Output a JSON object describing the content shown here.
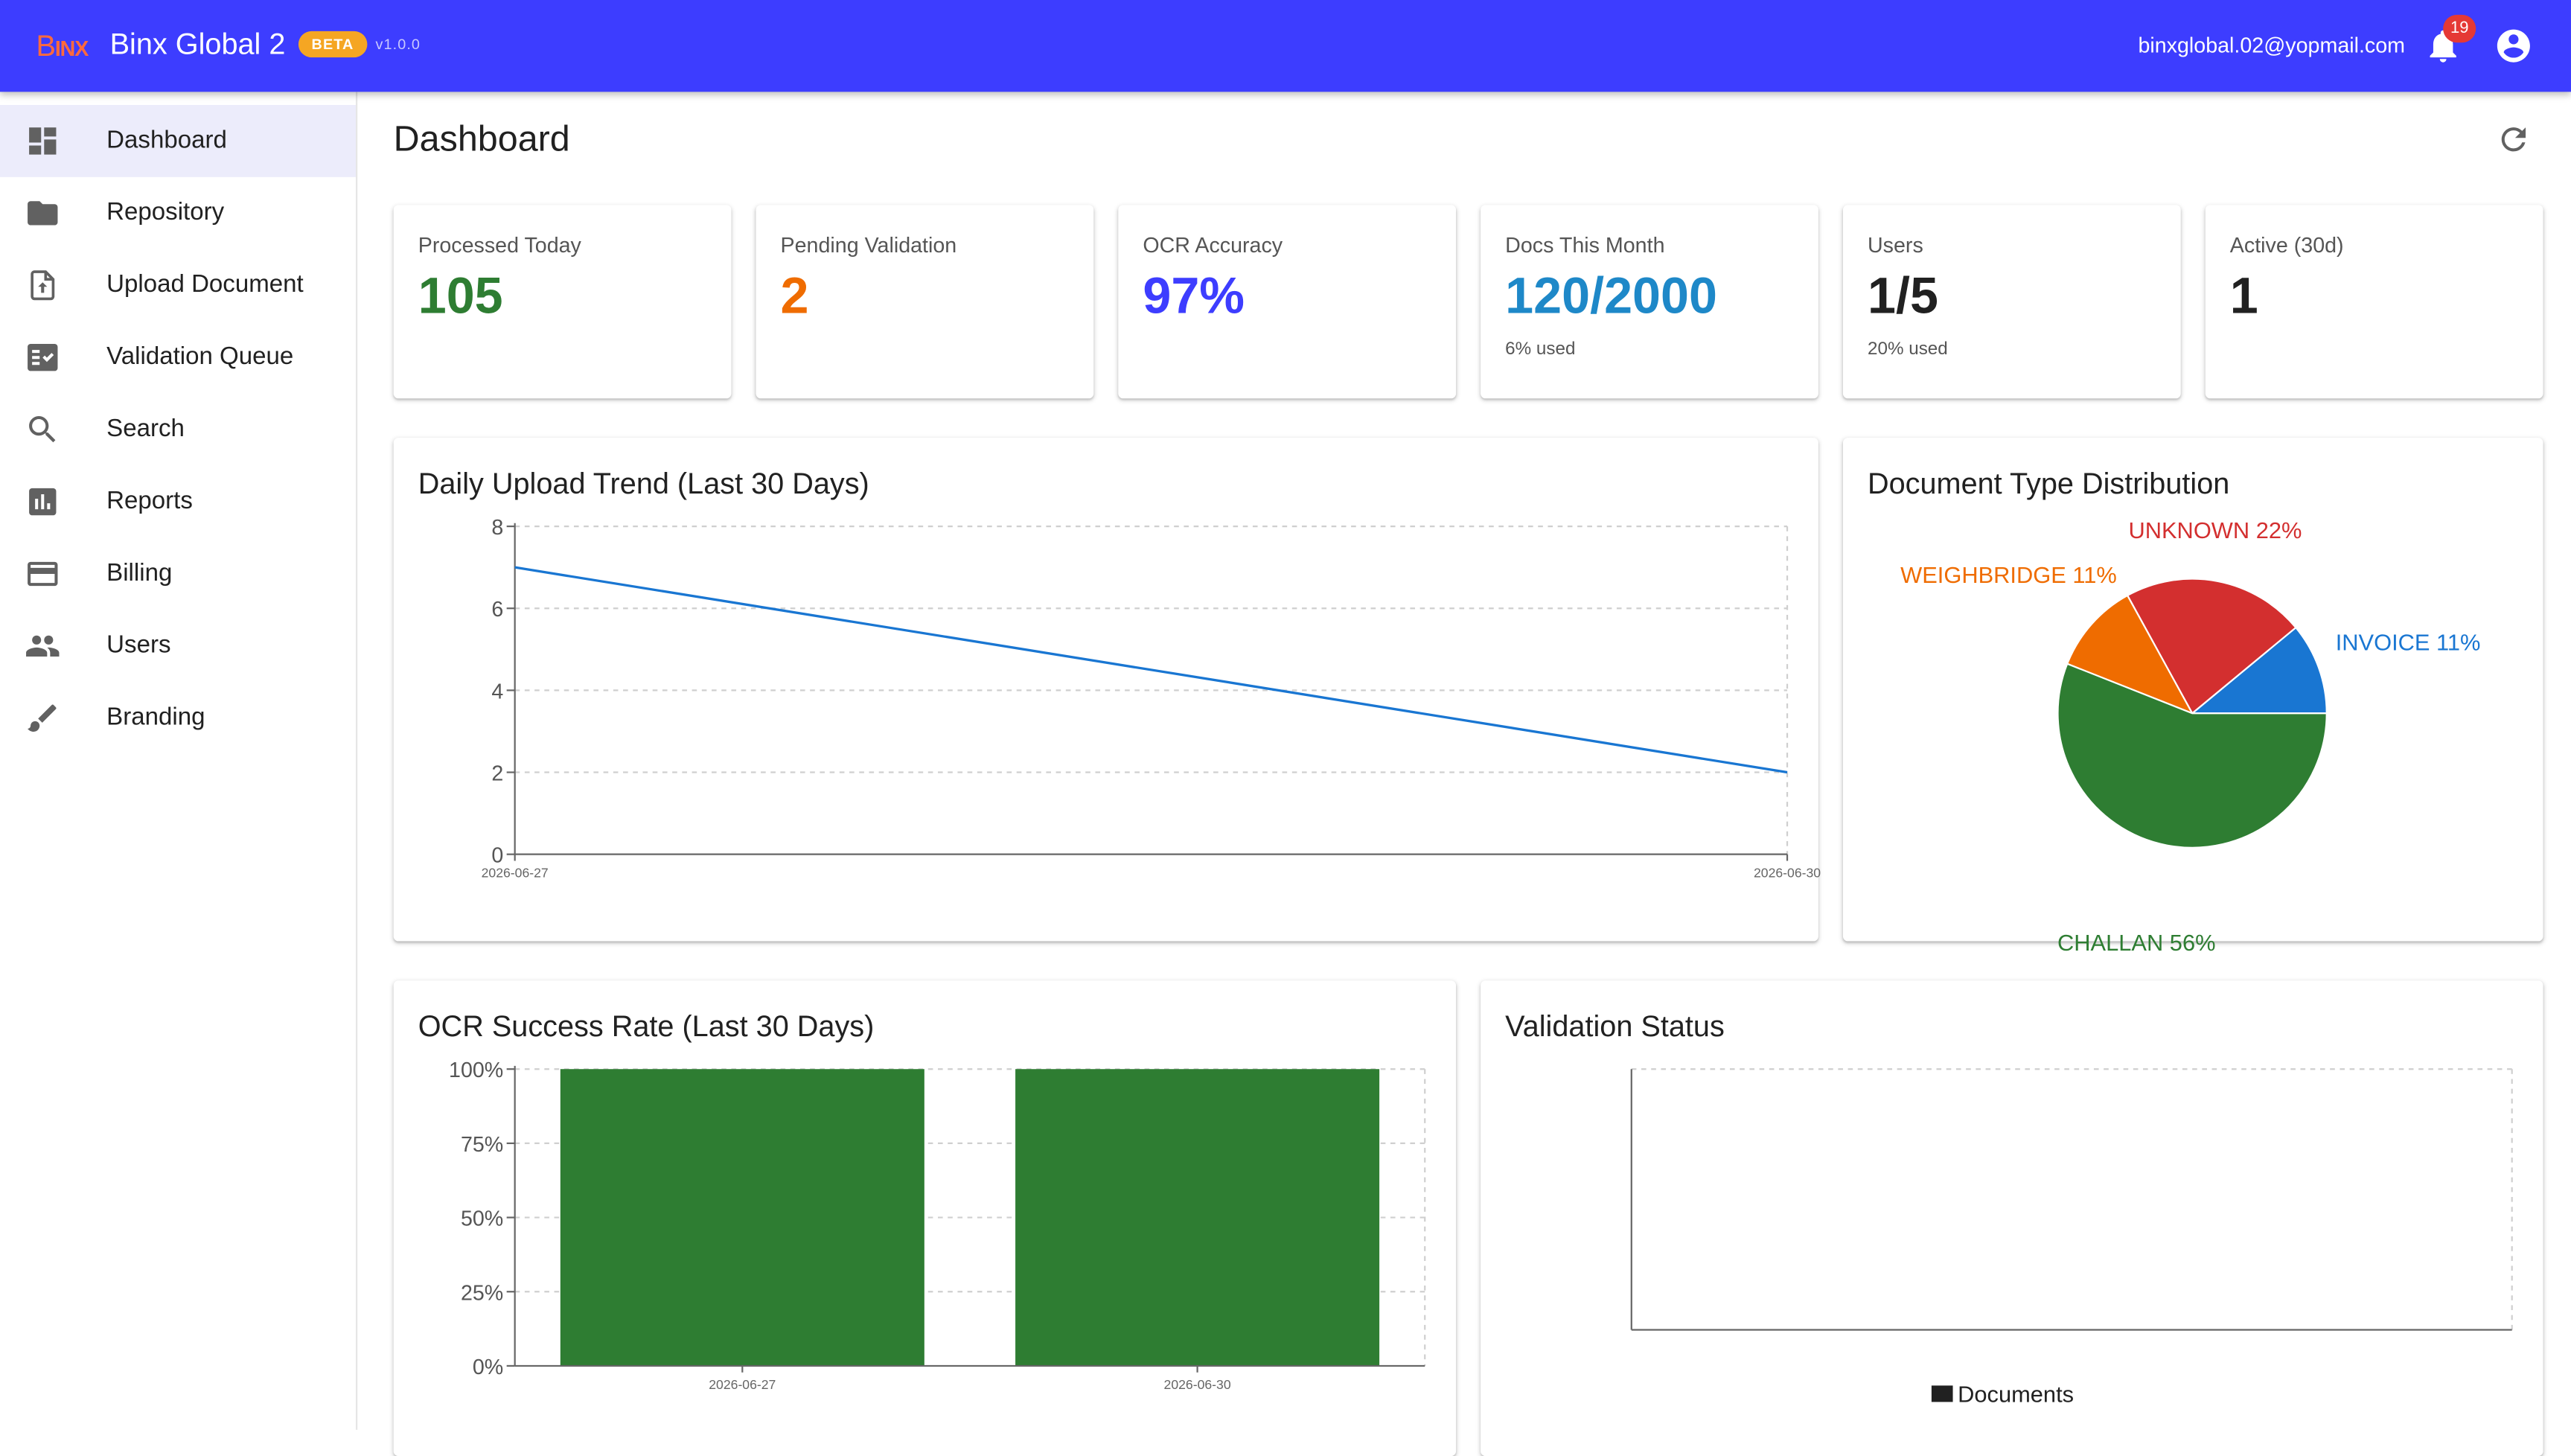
{
  "header": {
    "logo_prefix": "B",
    "logo_rest": "INX",
    "app_title": "Binx Global 2",
    "beta_label": "BETA",
    "version": "v1.0.0",
    "user_email": "binxglobal.02@yopmail.com",
    "notification_count": "19"
  },
  "sidebar": {
    "items": [
      {
        "label": "Dashboard",
        "icon": "dashboard-icon",
        "active": true
      },
      {
        "label": "Repository",
        "icon": "folder-icon"
      },
      {
        "label": "Upload Document",
        "icon": "upload-file-icon"
      },
      {
        "label": "Validation Queue",
        "icon": "fact-check-icon"
      },
      {
        "label": "Search",
        "icon": "search-icon"
      },
      {
        "label": "Reports",
        "icon": "bar-chart-icon"
      },
      {
        "label": "Billing",
        "icon": "credit-card-icon"
      },
      {
        "label": "Users",
        "icon": "people-icon"
      },
      {
        "label": "Branding",
        "icon": "brush-icon"
      }
    ]
  },
  "main": {
    "title": "Dashboard",
    "stats": [
      {
        "label": "Processed Today",
        "value": "105",
        "sub": "",
        "color": "#2e7d32"
      },
      {
        "label": "Pending Validation",
        "value": "2",
        "sub": "",
        "color": "#ef6c00"
      },
      {
        "label": "OCR Accuracy",
        "value": "97%",
        "sub": "",
        "color": "#3d3dff"
      },
      {
        "label": "Docs This Month",
        "value": "120/2000",
        "sub": "6% used",
        "color": "#1e88c8"
      },
      {
        "label": "Users",
        "value": "1/5",
        "sub": "20% used",
        "color": "#212121"
      },
      {
        "label": "Active (30d)",
        "value": "1",
        "sub": "",
        "color": "#212121"
      }
    ],
    "panels": {
      "upload_trend_title": "Daily Upload Trend (Last 30 Days)",
      "doc_type_title": "Document Type Distribution",
      "ocr_success_title": "OCR Success Rate (Last 30 Days)",
      "validation_status_title": "Validation Status"
    }
  },
  "chart_data": [
    {
      "type": "line",
      "title": "Daily Upload Trend (Last 30 Days)",
      "x": [
        "2026-06-27",
        "2026-06-30"
      ],
      "series": [
        {
          "values": [
            7,
            2
          ]
        }
      ],
      "ylim": [
        0,
        8
      ],
      "yticks": [
        0,
        2,
        4,
        6,
        8
      ],
      "grid": true,
      "color": "#1976d2"
    },
    {
      "type": "pie",
      "title": "Document Type Distribution",
      "slices": [
        {
          "label": "INVOICE 11%",
          "value": 11,
          "color": "#1976d2"
        },
        {
          "label": "UNKNOWN 22%",
          "value": 22,
          "color": "#d32f2f"
        },
        {
          "label": "WEIGHBRIDGE 11%",
          "value": 11,
          "color": "#ef6c00"
        },
        {
          "label": "CHALLAN 56%",
          "value": 56,
          "color": "#2e7d32"
        }
      ]
    },
    {
      "type": "bar",
      "title": "OCR Success Rate (Last 30 Days)",
      "categories": [
        "2026-06-27",
        "2026-06-30"
      ],
      "values": [
        100,
        100
      ],
      "ylim": [
        0,
        100
      ],
      "yticks": [
        "0%",
        "25%",
        "50%",
        "75%",
        "100%"
      ],
      "grid": true,
      "color": "#2e7d32"
    },
    {
      "type": "bar",
      "title": "Validation Status",
      "categories": [],
      "values": [],
      "legend": [
        {
          "name": "Documents",
          "color": "#212121"
        }
      ],
      "legend_position": "bottom",
      "grid": true
    }
  ]
}
